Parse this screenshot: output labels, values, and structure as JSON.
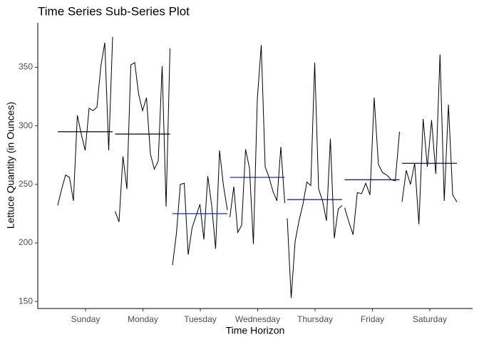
{
  "chart_data": {
    "type": "subseries",
    "title": "Time Series Sub-Series Plot",
    "x_label": "Time Horizon",
    "y_label": "Lettuce Quantity (in Ounces)",
    "categories": [
      "Sunday",
      "Monday",
      "Tuesday",
      "Wednesday",
      "Thursday",
      "Friday",
      "Saturday"
    ],
    "line_color": "#000000",
    "groups": [
      {
        "values": [
          232,
          246,
          258,
          256,
          236,
          309,
          293,
          279,
          315,
          313,
          316,
          351,
          371,
          279,
          376
        ],
        "mean": 295,
        "mean_color": "#000000"
      },
      {
        "values": [
          227,
          218,
          274,
          246,
          352,
          354,
          327,
          313,
          324,
          276,
          263,
          270,
          351,
          231,
          366
        ],
        "mean": 293,
        "mean_color": "#000000"
      },
      {
        "values": [
          181,
          208,
          250,
          251,
          190,
          213,
          223,
          233,
          203,
          257,
          232,
          195,
          279,
          249,
          228
        ],
        "mean": 225,
        "mean_color": "#1f2fa0"
      },
      {
        "values": [
          222,
          248,
          209,
          215,
          280,
          264,
          199,
          323,
          369,
          265,
          256,
          244,
          236,
          282,
          234
        ],
        "mean": 256,
        "mean_color": "#141a66"
      },
      {
        "values": [
          221,
          153,
          201,
          219,
          233,
          252,
          249,
          354,
          246,
          236,
          219,
          289,
          204,
          229,
          232
        ],
        "mean": 237,
        "mean_color": "#141a66"
      },
      {
        "values": [
          230,
          218,
          207,
          243,
          242,
          251,
          241,
          324,
          267,
          260,
          258,
          254,
          253,
          295
        ],
        "mean": 254,
        "mean_color": "#0d1040"
      },
      {
        "values": [
          235,
          262,
          250,
          268,
          216,
          306,
          265,
          305,
          259,
          361,
          236,
          318,
          241,
          235
        ],
        "mean": 268,
        "mean_color": "#0d1040"
      }
    ],
    "ylim": [
      144,
      388
    ],
    "yticks": [
      150,
      200,
      250,
      300,
      350
    ],
    "grid": false
  }
}
